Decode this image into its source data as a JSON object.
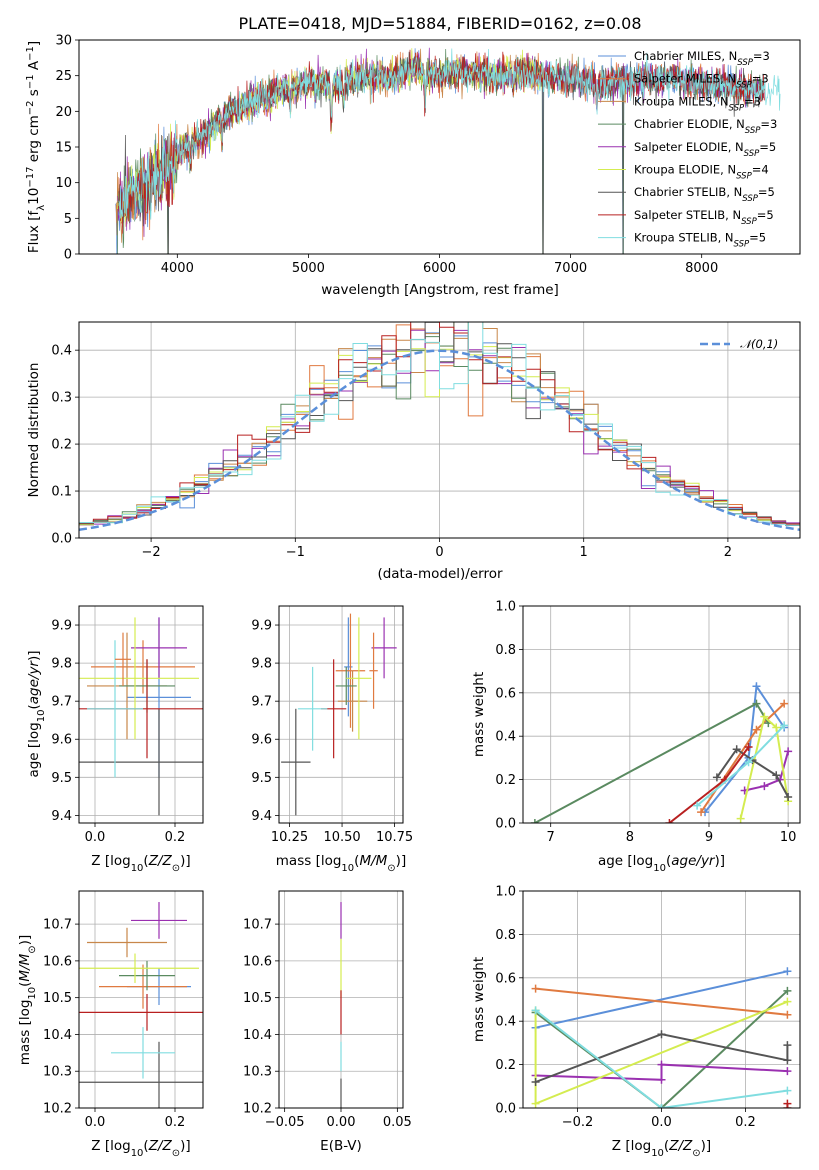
{
  "figure_title": "PLATE=0418, MJD=51884, FIBERID=0162, z=0.08",
  "model_colors": {
    "Chabrier MILES": "#5b8fd9",
    "Salpeter MILES": "#e07a40",
    "Kroupa MILES": "#c8874a",
    "Chabrier ELODIE": "#5a8a60",
    "Salpeter ELODIE": "#9a30b0",
    "Kroupa ELODIE": "#d4ec50",
    "Chabrier STELIB": "#555555",
    "Salpeter STELIB": "#b82020",
    "Kroupa STELIB": "#80dde0"
  },
  "legend_entries": [
    {
      "label": "Chabrier MILES, N",
      "sub": "SSP",
      "suffix": "=3",
      "color": "#5b8fd9"
    },
    {
      "label": "Salpeter MILES, N",
      "sub": "SSP",
      "suffix": "=3",
      "color": "#e07a40"
    },
    {
      "label": "Kroupa MILES, N",
      "sub": "SSP",
      "suffix": "=3",
      "color": "#c8874a"
    },
    {
      "label": "Chabrier ELODIE, N",
      "sub": "SSP",
      "suffix": "=3",
      "color": "#5a8a60"
    },
    {
      "label": "Salpeter ELODIE, N",
      "sub": "SSP",
      "suffix": "=5",
      "color": "#9a30b0"
    },
    {
      "label": "Kroupa ELODIE, N",
      "sub": "SSP",
      "suffix": "=4",
      "color": "#d4ec50"
    },
    {
      "label": "Chabrier STELIB, N",
      "sub": "SSP",
      "suffix": "=5",
      "color": "#555555"
    },
    {
      "label": "Salpeter STELIB, N",
      "sub": "SSP",
      "suffix": "=5",
      "color": "#b82020"
    },
    {
      "label": "Kroupa STELIB, N",
      "sub": "SSP",
      "suffix": "=5",
      "color": "#80dde0"
    }
  ],
  "chart_data": [
    {
      "id": "spectrum",
      "type": "line",
      "xlabel": "wavelength [Angstrom, rest frame]",
      "ylabel": "Flux [fλ10⁻¹⁷ erg cm⁻² s⁻¹ A⁻¹]",
      "xlim": [
        3250,
        8750
      ],
      "ylim": [
        0,
        30
      ],
      "xticks": [
        4000,
        5000,
        6000,
        7000,
        8000
      ],
      "yticks": [
        0,
        5,
        10,
        15,
        20,
        25,
        30
      ],
      "grid": false,
      "legend_position": "top-right",
      "continuum": {
        "x": [
          3550,
          3700,
          3850,
          3950,
          4050,
          4200,
          4400,
          4600,
          4800,
          5000,
          5200,
          5400,
          5600,
          5800,
          6000,
          6200,
          6400,
          6600,
          6800,
          7000,
          7200,
          7400,
          7600,
          7800,
          8000,
          8200,
          8400,
          8600
        ],
        "y": [
          7,
          8.5,
          11,
          12.5,
          15,
          16.5,
          20,
          21.5,
          23,
          24,
          23.5,
          25,
          24.5,
          26,
          25,
          25.5,
          25,
          25.5,
          25,
          24.5,
          24,
          24,
          24.5,
          24.5,
          24,
          23.5,
          23,
          22.5
        ]
      },
      "dropouts": [
        3540,
        3930,
        6790,
        7400
      ],
      "series_names": [
        "Chabrier MILES",
        "Salpeter MILES",
        "Kroupa MILES",
        "Chabrier ELODIE",
        "Salpeter ELODIE",
        "Kroupa ELODIE",
        "Chabrier STELIB",
        "Salpeter STELIB",
        "Kroupa STELIB"
      ]
    },
    {
      "id": "residual-histogram",
      "type": "bar",
      "xlabel": "(data-model)/error",
      "ylabel": "Normed distribution",
      "xlim": [
        -2.5,
        2.5
      ],
      "ylim": [
        0,
        0.46
      ],
      "xticks": [
        -2,
        -1,
        0,
        1,
        2
      ],
      "yticks": [
        0.0,
        0.1,
        0.2,
        0.3,
        0.4
      ],
      "grid": true,
      "legend_position": "top-right",
      "legend_label": "𝒩(0,1)",
      "normal_curve_color": "#5b8fd9",
      "bin_width": 0.1
    },
    {
      "id": "age-vs-metallicity",
      "type": "scatter",
      "xlabel": "Z [log10(Z/Z⊙)]",
      "ylabel": "age [log10(age/yr)]",
      "xlim": [
        -0.04,
        0.27
      ],
      "ylim": [
        9.38,
        9.95
      ],
      "xticks": [
        0.0,
        0.2
      ],
      "yticks": [
        9.4,
        9.5,
        9.6,
        9.7,
        9.8,
        9.9
      ],
      "grid": true,
      "points": [
        {
          "model": "Chabrier MILES",
          "x": 0.16,
          "xerr": 0.08,
          "y": 9.71,
          "yerr": 0.21
        },
        {
          "model": "Salpeter MILES",
          "x": 0.12,
          "xerr": 0.13,
          "y": 9.79,
          "yerr": 0.07
        },
        {
          "model": "Kroupa MILES",
          "x": 0.08,
          "xerr": 0.1,
          "y": 9.74,
          "yerr": 0.14
        },
        {
          "model": "Chabrier ELODIE",
          "x": 0.13,
          "xerr": 0.07,
          "y": 9.74,
          "yerr": 0.07
        },
        {
          "model": "Salpeter ELODIE",
          "x": 0.16,
          "xerr": 0.07,
          "y": 9.84,
          "yerr": 0.08
        },
        {
          "model": "Kroupa ELODIE",
          "x": 0.1,
          "xerr": 0.16,
          "y": 9.76,
          "yerr": 0.16
        },
        {
          "model": "Chabrier STELIB",
          "x": 0.16,
          "xerr": 0.26,
          "y": 9.54,
          "yerr": 0.14
        },
        {
          "model": "Salpeter STELIB",
          "x": 0.13,
          "xerr": 0.22,
          "y": 9.68,
          "yerr": 0.13
        },
        {
          "model": "Kroupa STELIB",
          "x": 0.05,
          "xerr": 0.07,
          "y": 9.68,
          "yerr": 0.18
        },
        {
          "model": "Salpeter MILES",
          "x": 0.07,
          "xerr": 0.02,
          "y": 9.81,
          "yerr": 0.07
        }
      ]
    },
    {
      "id": "age-vs-mass",
      "type": "scatter",
      "xlabel": "mass [log10(M/M⊙)]",
      "ylabel": "",
      "xlim": [
        10.2,
        10.79
      ],
      "ylim": [
        9.38,
        9.95
      ],
      "xticks": [
        10.25,
        10.5,
        10.75
      ],
      "yticks": [
        9.4,
        9.5,
        9.6,
        9.7,
        9.8,
        9.9
      ],
      "grid": true,
      "points": [
        {
          "model": "Chabrier MILES",
          "x": 10.53,
          "xerr": 0.02,
          "y": 9.79,
          "yerr": 0.13
        },
        {
          "model": "Salpeter MILES",
          "x": 10.54,
          "xerr": 0.07,
          "y": 9.78,
          "yerr": 0.15
        },
        {
          "model": "Kroupa MILES",
          "x": 10.55,
          "xerr": 0.07,
          "y": 9.7,
          "yerr": 0.08
        },
        {
          "model": "Chabrier ELODIE",
          "x": 10.52,
          "xerr": 0.05,
          "y": 9.74,
          "yerr": 0.05
        },
        {
          "model": "Salpeter ELODIE",
          "x": 10.7,
          "xerr": 0.06,
          "y": 9.84,
          "yerr": 0.08
        },
        {
          "model": "Kroupa ELODIE",
          "x": 10.58,
          "xerr": 0.06,
          "y": 9.76,
          "yerr": 0.16
        },
        {
          "model": "Chabrier STELIB",
          "x": 10.28,
          "xerr": 0.07,
          "y": 9.54,
          "yerr": 0.14
        },
        {
          "model": "Salpeter STELIB",
          "x": 10.46,
          "xerr": 0.06,
          "y": 9.68,
          "yerr": 0.13
        },
        {
          "model": "Kroupa STELIB",
          "x": 10.36,
          "xerr": 0.07,
          "y": 9.68,
          "yerr": 0.11
        },
        {
          "model": "Salpeter MILES",
          "x": 10.65,
          "xerr": 0.02,
          "y": 9.78,
          "yerr": 0.1
        }
      ]
    },
    {
      "id": "mass-weight-vs-age",
      "type": "line",
      "xlabel": "age [log10(age/yr)]",
      "ylabel": "mass weight",
      "xlim": [
        6.65,
        10.15
      ],
      "ylim": [
        0,
        1.0
      ],
      "xticks": [
        7,
        8,
        9,
        10
      ],
      "yticks": [
        0.0,
        0.2,
        0.4,
        0.6,
        0.8,
        1.0
      ],
      "grid": true,
      "series": [
        {
          "model": "Chabrier MILES",
          "x": [
            8.95,
            9.5,
            9.6,
            9.95
          ],
          "y": [
            0.05,
            0.3,
            0.63,
            0.44
          ]
        },
        {
          "model": "Salpeter MILES",
          "x": [
            8.9,
            9.6,
            9.95
          ],
          "y": [
            0.05,
            0.43,
            0.55
          ]
        },
        {
          "model": "Chabrier ELODIE",
          "x": [
            6.8,
            9.6,
            9.75
          ],
          "y": [
            0.0,
            0.55,
            0.46
          ]
        },
        {
          "model": "Salpeter ELODIE",
          "x": [
            9.45,
            9.7,
            9.9,
            10.0
          ],
          "y": [
            0.15,
            0.17,
            0.2,
            0.33
          ]
        },
        {
          "model": "Kroupa ELODIE",
          "x": [
            9.4,
            9.7,
            9.85,
            10.0
          ],
          "y": [
            0.02,
            0.49,
            0.44,
            0.1
          ]
        },
        {
          "model": "Chabrier STELIB",
          "x": [
            9.1,
            9.35,
            9.55,
            9.85,
            10.0
          ],
          "y": [
            0.21,
            0.34,
            0.29,
            0.22,
            0.12
          ]
        },
        {
          "model": "Salpeter STELIB",
          "x": [
            8.5,
            9.2,
            9.5
          ],
          "y": [
            0.0,
            0.2,
            0.35
          ]
        },
        {
          "model": "Kroupa STELIB",
          "x": [
            8.85,
            9.5,
            9.95
          ],
          "y": [
            0.08,
            0.28,
            0.45
          ]
        }
      ]
    },
    {
      "id": "mass-vs-metallicity",
      "type": "scatter",
      "xlabel": "Z [log10(Z/Z⊙)]",
      "ylabel": "mass [log10(M/M⊙)]",
      "xlim": [
        -0.04,
        0.27
      ],
      "ylim": [
        10.2,
        10.79
      ],
      "xticks": [
        0.0,
        0.2
      ],
      "yticks": [
        10.2,
        10.3,
        10.4,
        10.5,
        10.6,
        10.7
      ],
      "grid": true,
      "points": [
        {
          "model": "Chabrier MILES",
          "x": 0.16,
          "xerr": 0.08,
          "y": 10.53,
          "yerr": 0.05
        },
        {
          "model": "Salpeter MILES",
          "x": 0.12,
          "xerr": 0.11,
          "y": 10.53,
          "yerr": 0.06
        },
        {
          "model": "Kroupa MILES",
          "x": 0.08,
          "xerr": 0.1,
          "y": 10.65,
          "yerr": 0.04
        },
        {
          "model": "Chabrier ELODIE",
          "x": 0.13,
          "xerr": 0.07,
          "y": 10.56,
          "yerr": 0.04
        },
        {
          "model": "Salpeter ELODIE",
          "x": 0.16,
          "xerr": 0.07,
          "y": 10.71,
          "yerr": 0.05
        },
        {
          "model": "Kroupa ELODIE",
          "x": 0.1,
          "xerr": 0.16,
          "y": 10.58,
          "yerr": 0.04
        },
        {
          "model": "Chabrier STELIB",
          "x": 0.16,
          "xerr": 0.26,
          "y": 10.27,
          "yerr": 0.11
        },
        {
          "model": "Salpeter STELIB",
          "x": 0.13,
          "xerr": 0.22,
          "y": 10.46,
          "yerr": 0.05
        },
        {
          "model": "Kroupa STELIB",
          "x": 0.12,
          "xerr": 0.08,
          "y": 10.35,
          "yerr": 0.07
        }
      ]
    },
    {
      "id": "mass-vs-extinction",
      "type": "scatter",
      "xlabel": "E(B-V)",
      "ylabel": "",
      "xlim": [
        -0.055,
        0.055
      ],
      "ylim": [
        10.2,
        10.79
      ],
      "xticks": [
        -0.05,
        0.0,
        0.05
      ],
      "yticks": [
        10.2,
        10.3,
        10.4,
        10.5,
        10.6,
        10.7
      ],
      "grid": true,
      "points": [
        {
          "model": "Salpeter ELODIE",
          "x": 0.0,
          "y": 10.71,
          "yerr": 0.05
        },
        {
          "model": "Kroupa ELODIE",
          "x": 0.0,
          "y": 10.58,
          "yerr": 0.08
        },
        {
          "model": "Salpeter STELIB",
          "x": 0.0,
          "y": 10.46,
          "yerr": 0.06
        },
        {
          "model": "Kroupa STELIB",
          "x": 0.0,
          "y": 10.34,
          "yerr": 0.04
        },
        {
          "model": "Chabrier STELIB",
          "x": 0.0,
          "y": 10.24,
          "yerr": 0.04
        }
      ]
    },
    {
      "id": "mass-weight-vs-metallicity",
      "type": "line",
      "xlabel": "Z [log10(Z/Z⊙)]",
      "ylabel": "mass weight",
      "xlim": [
        -0.33,
        0.33
      ],
      "ylim": [
        0,
        1.0
      ],
      "xticks": [
        -0.2,
        0.0,
        0.2
      ],
      "yticks": [
        0.0,
        0.2,
        0.4,
        0.6,
        0.8,
        1.0
      ],
      "grid": true,
      "series": [
        {
          "model": "Chabrier MILES",
          "x": [
            -0.3,
            0.3
          ],
          "y": [
            0.37,
            0.63
          ]
        },
        {
          "model": "Salpeter MILES",
          "x": [
            -0.3,
            0.3
          ],
          "y": [
            0.55,
            0.43
          ]
        },
        {
          "model": "Chabrier ELODIE",
          "x": [
            -0.3,
            0.0,
            0.3
          ],
          "y": [
            0.44,
            0.0,
            0.54
          ]
        },
        {
          "model": "Salpeter ELODIE",
          "x": [
            -0.3,
            0.0,
            0.0,
            0.3
          ],
          "y": [
            0.15,
            0.13,
            0.2,
            0.17
          ]
        },
        {
          "model": "Kroupa ELODIE",
          "x": [
            -0.3,
            -0.3,
            0.3
          ],
          "y": [
            0.45,
            0.02,
            0.49
          ]
        },
        {
          "model": "Chabrier STELIB",
          "x": [
            -0.3,
            0.0,
            0.3,
            0.3
          ],
          "y": [
            0.12,
            0.34,
            0.22,
            0.29
          ]
        },
        {
          "model": "Salpeter STELIB",
          "x": [
            0.3,
            0.3
          ],
          "y": [
            0.02,
            0.0
          ]
        },
        {
          "model": "Kroupa STELIB",
          "x": [
            -0.3,
            0.0,
            0.3
          ],
          "y": [
            0.45,
            0.0,
            0.08
          ]
        }
      ]
    }
  ]
}
